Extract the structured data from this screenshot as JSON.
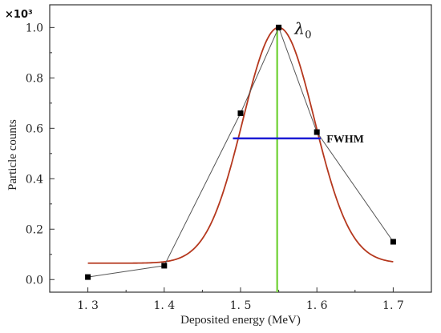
{
  "chart_data": {
    "type": "line",
    "title": "",
    "xlabel": "Deposited energy (MeV)",
    "ylabel": "Particle counts",
    "y_multiplier_label": "×10³",
    "xlim": [
      1.25,
      1.75
    ],
    "ylim": [
      -0.05,
      1.09
    ],
    "x_ticks": [
      1.3,
      1.4,
      1.5,
      1.6,
      1.7
    ],
    "x_tick_labels": [
      "1. 3",
      "1. 4",
      "1. 5",
      "1. 6",
      "1. 7"
    ],
    "y_ticks": [
      0.0,
      0.2,
      0.4,
      0.6,
      0.8,
      1.0
    ],
    "y_tick_labels": [
      "0.0",
      "0.2",
      "0.4",
      "0.6",
      "0.8",
      "1.0"
    ],
    "grid": false,
    "series": [
      {
        "kind": "data-points-connected",
        "color": "#555555",
        "marker_color": "#000000",
        "x": [
          1.3,
          1.4,
          1.5,
          1.55,
          1.6,
          1.7
        ],
        "y": [
          0.01,
          0.055,
          0.66,
          1.0,
          0.585,
          0.15
        ]
      },
      {
        "kind": "gaussian-fit",
        "color": "#b5381e",
        "baseline": 0.065,
        "amplitude": 0.935,
        "center": 1.55,
        "sigma": 0.047,
        "x_range": [
          1.3,
          1.7
        ]
      }
    ],
    "annotations": {
      "peak_label": "λ",
      "peak_label_sub": "0",
      "peak_line": {
        "x": 1.548,
        "y_from": -0.05,
        "y_to": 1.0,
        "color": "#7fd64a"
      },
      "fwhm_label": "FWHM",
      "fwhm_line": {
        "x_from": 1.49,
        "x_to": 1.605,
        "y": 0.56,
        "color": "#1c1cd4"
      }
    }
  }
}
